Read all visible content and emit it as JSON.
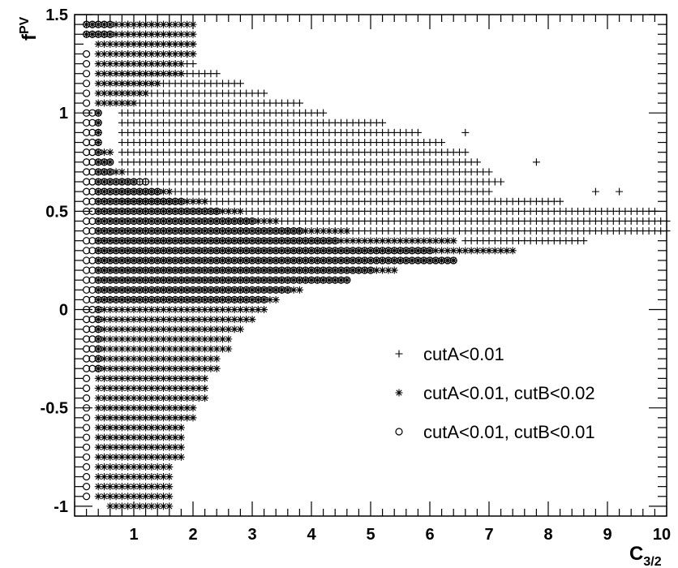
{
  "chart_data": {
    "type": "scatter",
    "xlabel": "C",
    "xlabel_sub": "3/2",
    "ylabel": "f",
    "ylabel_sup": "PV",
    "xlim": [
      0,
      10
    ],
    "ylim": [
      -1.05,
      1.5
    ],
    "x_ticks": [
      "1",
      "2",
      "3",
      "4",
      "5",
      "6",
      "7",
      "8",
      "9",
      "10"
    ],
    "y_ticks": [
      "-1",
      "-0.5",
      "0",
      "0.5",
      "1",
      "1.5"
    ],
    "grid": false,
    "legend_position": "lower-right",
    "marker_color": "#000000",
    "grid_step": {
      "x": 0.1,
      "y": 0.05
    },
    "series": [
      {
        "name": "cutA<0.01",
        "marker": "plus",
        "y_ranges": [
          {
            "y": 1.45,
            "x_min": 0.8,
            "x_max": 1.6
          },
          {
            "y": 1.4,
            "x_min": 0.8,
            "x_max": 1.6
          },
          {
            "y": 1.35,
            "x_min": 0.8,
            "x_max": 2.0
          },
          {
            "y": 1.3,
            "x_min": 0.8,
            "x_max": 2.0
          },
          {
            "y": 1.25,
            "x_min": 0.8,
            "x_max": 2.0
          },
          {
            "y": 1.2,
            "x_min": 0.8,
            "x_max": 2.4
          },
          {
            "y": 1.15,
            "x_min": 0.8,
            "x_max": 2.8
          },
          {
            "y": 1.1,
            "x_min": 0.8,
            "x_max": 3.2
          },
          {
            "y": 1.05,
            "x_min": 0.8,
            "x_max": 3.8
          },
          {
            "y": 1.0,
            "x_min": 0.8,
            "x_max": 4.2
          },
          {
            "y": 0.95,
            "x_min": 0.8,
            "x_max": 5.2
          },
          {
            "y": 0.9,
            "x_min": 0.8,
            "x_max": 5.8
          },
          {
            "y": 0.85,
            "x_min": 0.8,
            "x_max": 6.2
          },
          {
            "y": 0.8,
            "x_min": 0.8,
            "x_max": 6.6
          },
          {
            "y": 0.75,
            "x_min": 0.8,
            "x_max": 6.8
          },
          {
            "y": 0.7,
            "x_min": 0.8,
            "x_max": 7.0
          },
          {
            "y": 0.65,
            "x_min": 0.8,
            "x_max": 7.2
          },
          {
            "y": 0.6,
            "x_min": 0.8,
            "x_max": 7.0
          },
          {
            "y": 0.55,
            "x_min": 0.8,
            "x_max": 8.2
          },
          {
            "y": 0.5,
            "x_min": 2.4,
            "x_max": 9.8
          },
          {
            "y": 0.45,
            "x_min": 2.6,
            "x_max": 10.0
          },
          {
            "y": 0.4,
            "x_min": 3.6,
            "x_max": 10.0
          },
          {
            "y": 0.35,
            "x_min": 6.6,
            "x_max": 8.6
          }
        ],
        "extra_points": [
          [
            6.6,
            0.9
          ],
          [
            7.8,
            0.75
          ],
          [
            8.8,
            0.6
          ],
          [
            9.2,
            0.6
          ]
        ]
      },
      {
        "name": "cutA<0.01, cutB<0.02",
        "marker": "star",
        "y_ranges": [
          {
            "y": 1.45,
            "x_min": 0.2,
            "x_max": 2.0
          },
          {
            "y": 1.4,
            "x_min": 0.2,
            "x_max": 2.0
          },
          {
            "y": 1.35,
            "x_min": 0.4,
            "x_max": 2.0
          },
          {
            "y": 1.3,
            "x_min": 0.4,
            "x_max": 2.0
          },
          {
            "y": 1.25,
            "x_min": 0.4,
            "x_max": 1.8
          },
          {
            "y": 1.2,
            "x_min": 0.4,
            "x_max": 1.8
          },
          {
            "y": 1.15,
            "x_min": 0.4,
            "x_max": 1.4
          },
          {
            "y": 1.1,
            "x_min": 0.4,
            "x_max": 1.2
          },
          {
            "y": 1.05,
            "x_min": 0.4,
            "x_max": 1.0
          },
          {
            "y": 1.0,
            "x_min": 0.4,
            "x_max": 0.4
          },
          {
            "y": 0.95,
            "x_min": 0.4,
            "x_max": 0.4
          },
          {
            "y": 0.9,
            "x_min": 0.4,
            "x_max": 0.4
          },
          {
            "y": 0.85,
            "x_min": 0.4,
            "x_max": 0.4
          },
          {
            "y": 0.8,
            "x_min": 0.4,
            "x_max": 0.6
          },
          {
            "y": 0.75,
            "x_min": 0.4,
            "x_max": 0.6
          },
          {
            "y": 0.7,
            "x_min": 0.4,
            "x_max": 0.8
          },
          {
            "y": 0.65,
            "x_min": 0.4,
            "x_max": 1.0
          },
          {
            "y": 0.6,
            "x_min": 0.4,
            "x_max": 1.6
          },
          {
            "y": 0.55,
            "x_min": 0.4,
            "x_max": 2.2
          },
          {
            "y": 0.5,
            "x_min": 0.4,
            "x_max": 2.8
          },
          {
            "y": 0.45,
            "x_min": 0.4,
            "x_max": 3.4
          },
          {
            "y": 0.4,
            "x_min": 0.4,
            "x_max": 4.6
          },
          {
            "y": 0.35,
            "x_min": 0.4,
            "x_max": 6.4
          },
          {
            "y": 0.3,
            "x_min": 0.4,
            "x_max": 7.4
          },
          {
            "y": 0.25,
            "x_min": 0.4,
            "x_max": 6.4
          },
          {
            "y": 0.2,
            "x_min": 0.4,
            "x_max": 5.4
          },
          {
            "y": 0.15,
            "x_min": 0.4,
            "x_max": 4.6
          },
          {
            "y": 0.1,
            "x_min": 0.4,
            "x_max": 3.8
          },
          {
            "y": 0.05,
            "x_min": 0.4,
            "x_max": 3.4
          },
          {
            "y": 0.0,
            "x_min": 0.4,
            "x_max": 3.2
          },
          {
            "y": -0.05,
            "x_min": 0.4,
            "x_max": 3.0
          },
          {
            "y": -0.1,
            "x_min": 0.4,
            "x_max": 2.8
          },
          {
            "y": -0.15,
            "x_min": 0.4,
            "x_max": 2.6
          },
          {
            "y": -0.2,
            "x_min": 0.4,
            "x_max": 2.6
          },
          {
            "y": -0.25,
            "x_min": 0.4,
            "x_max": 2.4
          },
          {
            "y": -0.3,
            "x_min": 0.4,
            "x_max": 2.4
          },
          {
            "y": -0.35,
            "x_min": 0.4,
            "x_max": 2.2
          },
          {
            "y": -0.4,
            "x_min": 0.4,
            "x_max": 2.2
          },
          {
            "y": -0.45,
            "x_min": 0.4,
            "x_max": 2.2
          },
          {
            "y": -0.5,
            "x_min": 0.4,
            "x_max": 2.0
          },
          {
            "y": -0.55,
            "x_min": 0.4,
            "x_max": 2.0
          },
          {
            "y": -0.6,
            "x_min": 0.4,
            "x_max": 1.8
          },
          {
            "y": -0.65,
            "x_min": 0.4,
            "x_max": 1.8
          },
          {
            "y": -0.7,
            "x_min": 0.4,
            "x_max": 1.8
          },
          {
            "y": -0.75,
            "x_min": 0.4,
            "x_max": 1.8
          },
          {
            "y": -0.8,
            "x_min": 0.4,
            "x_max": 1.6
          },
          {
            "y": -0.85,
            "x_min": 0.4,
            "x_max": 1.6
          },
          {
            "y": -0.9,
            "x_min": 0.4,
            "x_max": 1.6
          },
          {
            "y": -0.95,
            "x_min": 0.4,
            "x_max": 1.6
          },
          {
            "y": -1.0,
            "x_min": 0.6,
            "x_max": 1.6
          }
        ]
      },
      {
        "name": "cutA<0.01, cutB<0.01",
        "marker": "circle",
        "y_ranges": [
          {
            "y": 1.45,
            "x_min": 0.2,
            "x_max": 0.6
          },
          {
            "y": 1.4,
            "x_min": 0.2,
            "x_max": 0.6
          },
          {
            "y": 1.3,
            "x_min": 0.2,
            "x_max": 0.2
          },
          {
            "y": 1.25,
            "x_min": 0.2,
            "x_max": 0.2
          },
          {
            "y": 1.2,
            "x_min": 0.2,
            "x_max": 0.2
          },
          {
            "y": 1.15,
            "x_min": 0.2,
            "x_max": 0.2
          },
          {
            "y": 1.1,
            "x_min": 0.2,
            "x_max": 0.2
          },
          {
            "y": 1.05,
            "x_min": 0.2,
            "x_max": 0.2
          },
          {
            "y": 1.0,
            "x_min": 0.2,
            "x_max": 0.4
          },
          {
            "y": 0.95,
            "x_min": 0.2,
            "x_max": 0.4
          },
          {
            "y": 0.9,
            "x_min": 0.2,
            "x_max": 0.4
          },
          {
            "y": 0.85,
            "x_min": 0.2,
            "x_max": 0.4
          },
          {
            "y": 0.8,
            "x_min": 0.2,
            "x_max": 0.4
          },
          {
            "y": 0.75,
            "x_min": 0.2,
            "x_max": 0.6
          },
          {
            "y": 0.7,
            "x_min": 0.2,
            "x_max": 0.6
          },
          {
            "y": 0.65,
            "x_min": 0.2,
            "x_max": 1.2
          },
          {
            "y": 0.6,
            "x_min": 0.2,
            "x_max": 1.4
          },
          {
            "y": 0.55,
            "x_min": 0.2,
            "x_max": 1.8
          },
          {
            "y": 0.5,
            "x_min": 0.2,
            "x_max": 2.4
          },
          {
            "y": 0.45,
            "x_min": 0.2,
            "x_max": 3.0
          },
          {
            "y": 0.4,
            "x_min": 0.2,
            "x_max": 3.8
          },
          {
            "y": 0.35,
            "x_min": 0.2,
            "x_max": 4.4
          },
          {
            "y": 0.3,
            "x_min": 0.2,
            "x_max": 6.0
          },
          {
            "y": 0.25,
            "x_min": 0.2,
            "x_max": 6.4
          },
          {
            "y": 0.2,
            "x_min": 0.2,
            "x_max": 5.0
          },
          {
            "y": 0.15,
            "x_min": 0.2,
            "x_max": 4.6
          },
          {
            "y": 0.1,
            "x_min": 0.2,
            "x_max": 3.6
          },
          {
            "y": 0.05,
            "x_min": 0.2,
            "x_max": 3.2
          },
          {
            "y": 0.0,
            "x_min": 0.2,
            "x_max": 0.4
          },
          {
            "y": -0.05,
            "x_min": 0.2,
            "x_max": 0.4
          },
          {
            "y": -0.1,
            "x_min": 0.2,
            "x_max": 0.4
          },
          {
            "y": -0.15,
            "x_min": 0.2,
            "x_max": 0.4
          },
          {
            "y": -0.2,
            "x_min": 0.2,
            "x_max": 0.4
          },
          {
            "y": -0.25,
            "x_min": 0.2,
            "x_max": 0.4
          },
          {
            "y": -0.3,
            "x_min": 0.2,
            "x_max": 0.4
          },
          {
            "y": -0.35,
            "x_min": 0.2,
            "x_max": 0.2
          },
          {
            "y": -0.4,
            "x_min": 0.2,
            "x_max": 0.2
          },
          {
            "y": -0.45,
            "x_min": 0.2,
            "x_max": 0.2
          },
          {
            "y": -0.5,
            "x_min": 0.2,
            "x_max": 0.2
          },
          {
            "y": -0.55,
            "x_min": 0.2,
            "x_max": 0.2
          },
          {
            "y": -0.6,
            "x_min": 0.2,
            "x_max": 0.2
          },
          {
            "y": -0.65,
            "x_min": 0.2,
            "x_max": 0.2
          },
          {
            "y": -0.7,
            "x_min": 0.2,
            "x_max": 0.2
          },
          {
            "y": -0.75,
            "x_min": 0.2,
            "x_max": 0.2
          },
          {
            "y": -0.8,
            "x_min": 0.2,
            "x_max": 0.2
          },
          {
            "y": -0.85,
            "x_min": 0.2,
            "x_max": 0.2
          },
          {
            "y": -0.9,
            "x_min": 0.2,
            "x_max": 0.2
          },
          {
            "y": -0.95,
            "x_min": 0.2,
            "x_max": 0.2
          }
        ]
      }
    ]
  }
}
